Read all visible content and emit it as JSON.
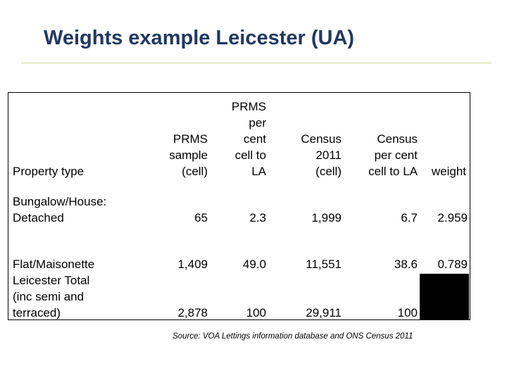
{
  "slide": {
    "title": "Weights example Leicester (UA)",
    "source": "Source: VOA Lettings information database and ONS Census 2011"
  },
  "table": {
    "headers": {
      "property_type": "Property type",
      "prms_sample": [
        "PRMS",
        "sample",
        "(cell)"
      ],
      "prms_percent": [
        "PRMS",
        "per",
        "cent",
        "cell to",
        "LA"
      ],
      "census_cell": [
        "Census",
        "2011",
        "(cell)"
      ],
      "census_percent": [
        "Census",
        "per cent",
        "cell to LA"
      ],
      "weight": "weight"
    },
    "rows": [
      {
        "label": [
          "Bungalow/House:",
          "Detached"
        ],
        "prms_sample": "65",
        "prms_percent": "2.3",
        "census_cell": "1,999",
        "census_percent": "6.7",
        "weight": "2.959"
      },
      {
        "label": [
          "Flat/Maisonette"
        ],
        "prms_sample": "1,409",
        "prms_percent": "49.0",
        "census_cell": "11,551",
        "census_percent": "38.6",
        "weight": "0.789"
      },
      {
        "label": [
          "Leicester Total",
          "(inc semi and",
          "terraced)"
        ],
        "prms_sample": "2,878",
        "prms_percent": "100",
        "census_cell": "29,911",
        "census_percent": "100",
        "weight": ""
      }
    ]
  }
}
